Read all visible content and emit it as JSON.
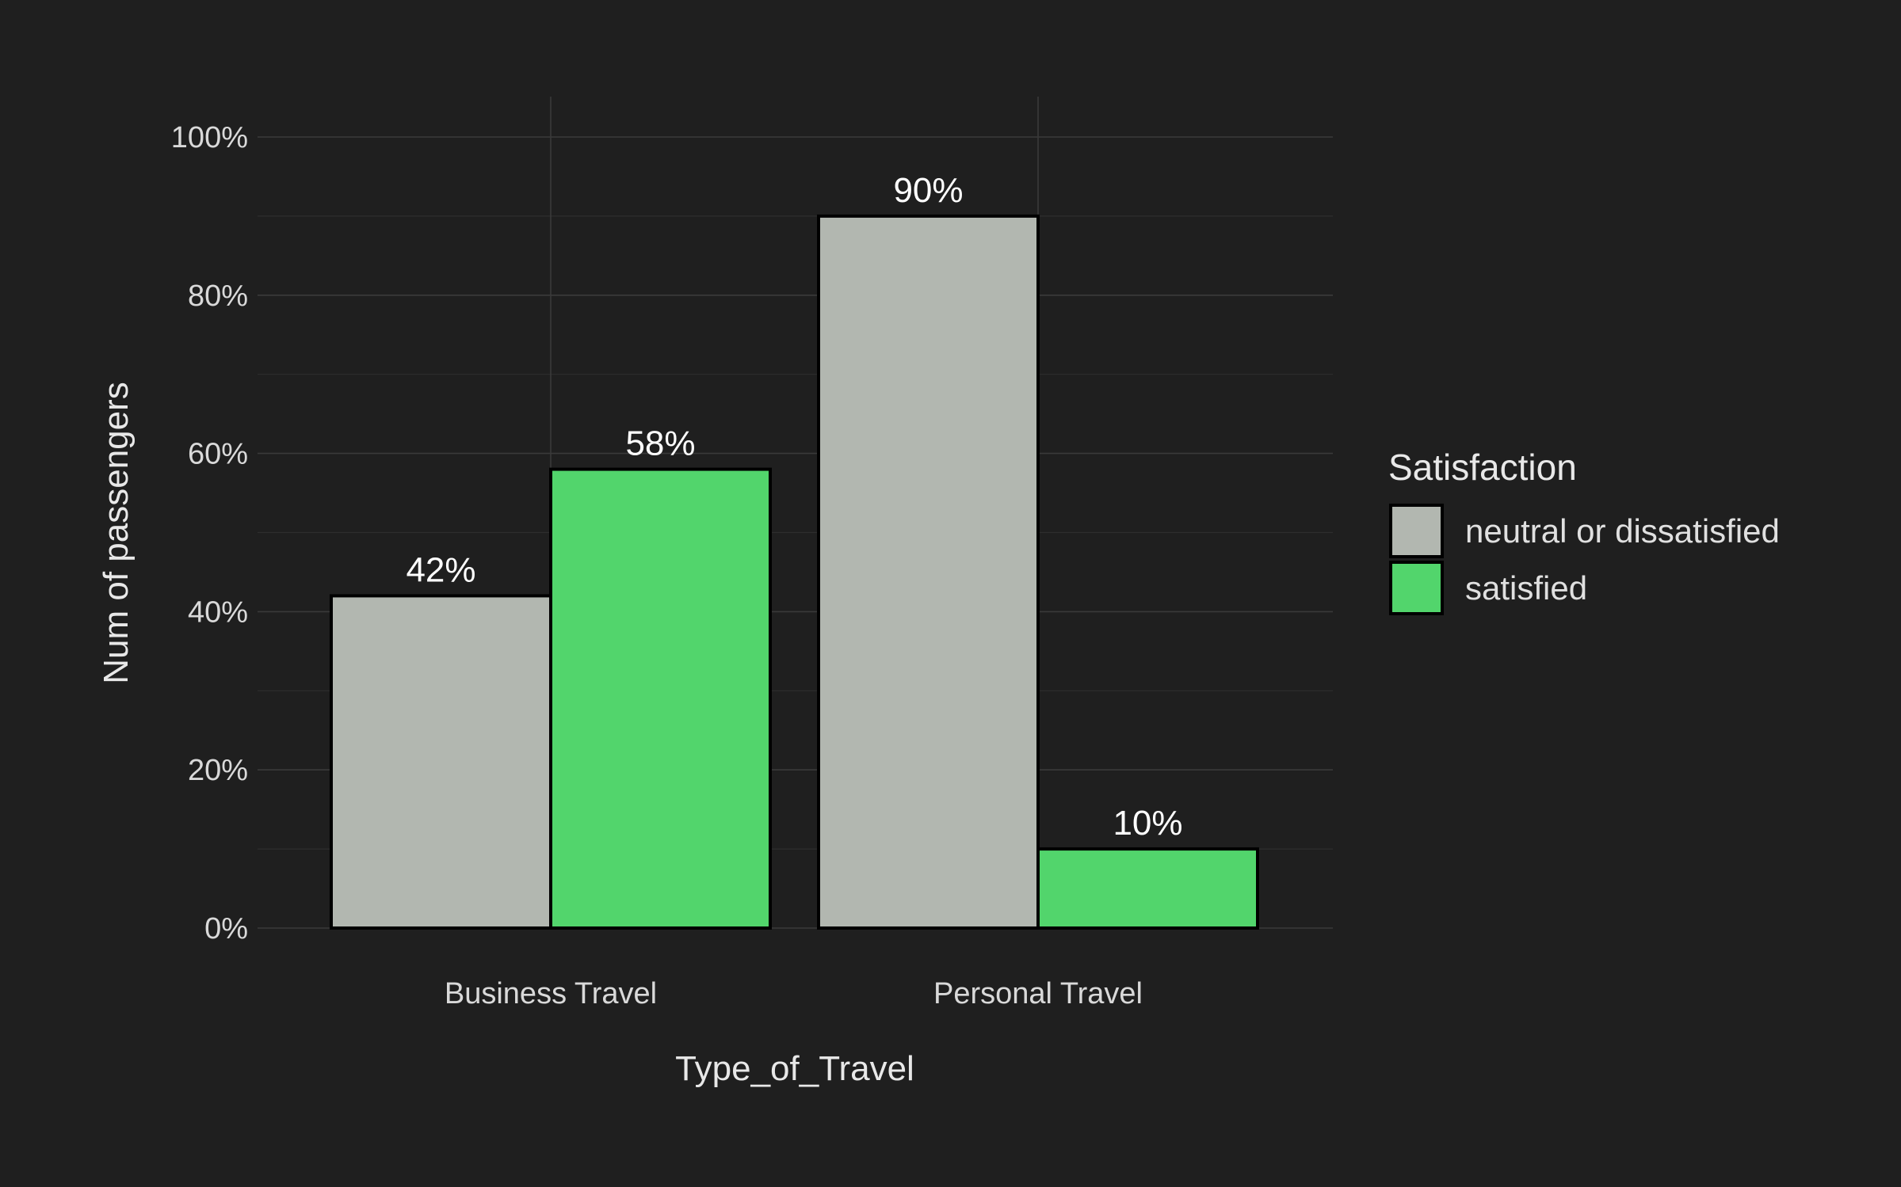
{
  "chart_data": {
    "type": "bar",
    "xlabel": "Type_of_Travel",
    "ylabel": "Num of passengers",
    "ylim": [
      0,
      100
    ],
    "y_ticks": [
      "0%",
      "20%",
      "40%",
      "60%",
      "80%",
      "100%"
    ],
    "categories": [
      "Business Travel",
      "Personal Travel"
    ],
    "series": [
      {
        "name": "neutral or dissatisfied",
        "color": "#b2b7b0",
        "values": [
          42,
          90
        ],
        "labels": [
          "42%",
          "90%"
        ]
      },
      {
        "name": "satisfied",
        "color": "#52d56c",
        "values": [
          58,
          10
        ],
        "labels": [
          "58%",
          "10%"
        ]
      }
    ],
    "legend": {
      "title": "Satisfaction",
      "position": "right"
    },
    "grid": true
  }
}
